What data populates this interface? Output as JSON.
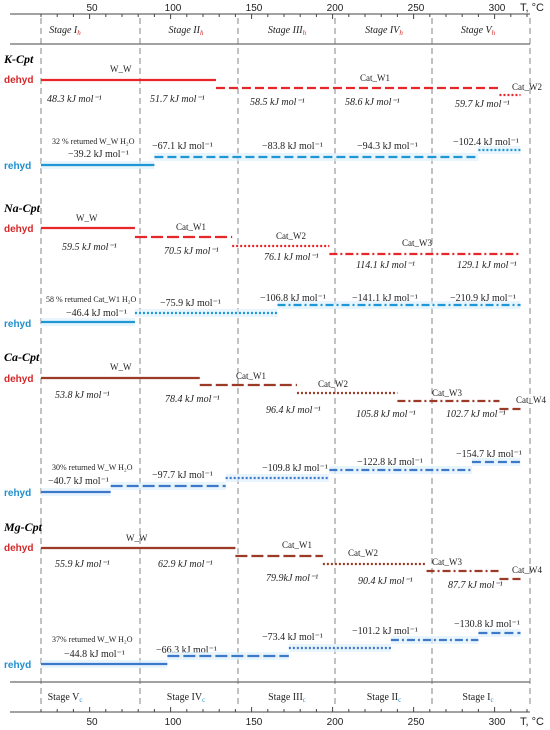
{
  "axis": {
    "unit": "T, °C",
    "top_ticks": [
      "50",
      "100",
      "150",
      "200",
      "250",
      "300"
    ],
    "bottom_ticks": [
      "50",
      "100",
      "150",
      "200",
      "250",
      "300"
    ],
    "top_stages": [
      "Stage I",
      "Stage II",
      "Stage III",
      "Stage IV",
      "Stage V"
    ],
    "top_stage_sub": "h",
    "bottom_stages": [
      "Stage V",
      "Stage IV",
      "Stage III",
      "Stage II",
      "Stage I"
    ],
    "bottom_stage_sub": "c"
  },
  "colors": {
    "dehyd_label": "#d62728",
    "rehyd_label": "#1f8fcf",
    "K-Cpt": {
      "dehyd": "#e8262a",
      "rehyd": "#1f97d4"
    },
    "Na-Cpt": {
      "dehyd": "#e8262a",
      "rehyd": "#1f97d4"
    },
    "Ca-Cpt": {
      "dehyd": "#9b3a26",
      "rehyd": "#3e78c8"
    },
    "Mg-Cpt": {
      "dehyd": "#9b3a26",
      "rehyd": "#3e78c8"
    }
  },
  "panels": [
    {
      "name": "K-Cpt",
      "dehyd_label": "dehyd",
      "rehyd_label": "rehyd",
      "dehyd_segments": [
        {
          "from": 22,
          "to": 130,
          "style": "solid",
          "label": "W_W"
        },
        {
          "from": 130,
          "to": 305,
          "style": "dash",
          "label": "Cat_W1"
        },
        {
          "from": 305,
          "to": 318,
          "style": "dot",
          "label": "Cat_W2"
        }
      ],
      "dehyd_energies": [
        "48.3 kJ mol⁻¹",
        "51.7 kJ mol⁻¹",
        "58.5 kJ mol⁻¹",
        "58.6 kJ mol⁻¹",
        "59.7 kJ mol⁻¹"
      ],
      "rehyd_segments": [
        {
          "from": 22,
          "to": 92,
          "style": "solid"
        },
        {
          "from": 92,
          "to": 292,
          "style": "dash"
        },
        {
          "from": 292,
          "to": 318,
          "style": "dot"
        }
      ],
      "rehyd_energies": [
        "−39.2 kJ mol⁻¹",
        "−67.1 kJ mol⁻¹",
        "−83.8 kJ mol⁻¹",
        "−94.3 kJ mol⁻¹",
        "−102.4 kJ mol⁻¹"
      ],
      "returned_note": "32 % returned W_W H₂O"
    },
    {
      "name": "Na-Cpt",
      "dehyd_label": "dehyd",
      "rehyd_label": "rehyd",
      "dehyd_segments": [
        {
          "from": 22,
          "to": 80,
          "style": "solid",
          "label": "W_W"
        },
        {
          "from": 80,
          "to": 140,
          "style": "longdash",
          "label": "Cat_W1"
        },
        {
          "from": 140,
          "to": 200,
          "style": "dot",
          "label": "Cat_W2"
        },
        {
          "from": 200,
          "to": 318,
          "style": "dashdot",
          "label": "Cat_W3"
        }
      ],
      "dehyd_energies": [
        "59.5 kJ mol⁻¹",
        "70.5 kJ mol⁻¹",
        "76.1 kJ mol⁻¹",
        "114.1 kJ mol⁻¹",
        "129.1 kJ mol⁻¹"
      ],
      "rehyd_segments": [
        {
          "from": 22,
          "to": 80,
          "style": "solid"
        },
        {
          "from": 80,
          "to": 168,
          "style": "dot"
        },
        {
          "from": 168,
          "to": 318,
          "style": "dashdot"
        }
      ],
      "rehyd_energies": [
        "−46.4 kJ mol⁻¹",
        "−75.9 kJ mol⁻¹",
        "−106.8 kJ mol⁻¹",
        "−141.1 kJ mol⁻¹",
        "−210.9 kJ mol⁻¹"
      ],
      "returned_note": "58 % returned Cat_W1 H₂O"
    },
    {
      "name": "Ca-Cpt",
      "dehyd_label": "dehyd",
      "rehyd_label": "rehyd",
      "dehyd_segments": [
        {
          "from": 22,
          "to": 120,
          "style": "solid",
          "label": "W_W"
        },
        {
          "from": 120,
          "to": 180,
          "style": "longdash",
          "label": "Cat_W1"
        },
        {
          "from": 180,
          "to": 242,
          "style": "dot",
          "label": "Cat_W2"
        },
        {
          "from": 242,
          "to": 305,
          "style": "dashdot",
          "label": "Cat_W3"
        },
        {
          "from": 305,
          "to": 318,
          "style": "dash",
          "label": "Cat_W4"
        }
      ],
      "dehyd_energies": [
        "53.8 kJ mol⁻¹",
        "78.4 kJ mol⁻¹",
        "96.4 kJ mol⁻¹",
        "105.8 kJ mol⁻¹",
        "102.7 kJ mol⁻¹"
      ],
      "rehyd_segments": [
        {
          "from": 22,
          "to": 65,
          "style": "solid"
        },
        {
          "from": 65,
          "to": 136,
          "style": "longdash"
        },
        {
          "from": 136,
          "to": 200,
          "style": "dot"
        },
        {
          "from": 200,
          "to": 288,
          "style": "dashdot"
        },
        {
          "from": 288,
          "to": 318,
          "style": "dash"
        }
      ],
      "rehyd_energies": [
        "−40.7 kJ mol⁻¹",
        "−97.7 kJ mol⁻¹",
        "−109.8 kJ mol⁻¹",
        "−122.8 kJ mol⁻¹",
        "−154.7 kJ mol⁻¹"
      ],
      "returned_note": "30% returned W_W H₂O"
    },
    {
      "name": "Mg-Cpt",
      "dehyd_label": "dehyd",
      "rehyd_label": "rehyd",
      "dehyd_segments": [
        {
          "from": 22,
          "to": 142,
          "style": "solid",
          "label": "W_W"
        },
        {
          "from": 142,
          "to": 196,
          "style": "longdash",
          "label": "Cat_W1"
        },
        {
          "from": 196,
          "to": 260,
          "style": "dot",
          "label": "Cat_W2"
        },
        {
          "from": 260,
          "to": 305,
          "style": "dashdot",
          "label": "Cat_W3"
        },
        {
          "from": 305,
          "to": 318,
          "style": "dash",
          "label": "Cat_W4"
        }
      ],
      "dehyd_energies": [
        "55.9 kJ mol⁻¹",
        "62.9 kJ mol⁻¹",
        "79.9kJ mol⁻¹",
        "90.4 kJ mol⁻¹",
        "87.7 kJ mol⁻¹"
      ],
      "rehyd_segments": [
        {
          "from": 22,
          "to": 100,
          "style": "solid"
        },
        {
          "from": 100,
          "to": 175,
          "style": "longdash"
        },
        {
          "from": 175,
          "to": 238,
          "style": "dot"
        },
        {
          "from": 238,
          "to": 292,
          "style": "dashdot"
        },
        {
          "from": 292,
          "to": 318,
          "style": "dash"
        }
      ],
      "rehyd_energies": [
        "−44.8 kJ mol⁻¹",
        "−66.3 kJ mol⁻¹",
        "−73.4 kJ mol⁻¹",
        "−101.2 kJ mol⁻¹",
        "−130.8 kJ mol⁻¹"
      ],
      "returned_note": "37% returned W_W H₂O"
    }
  ]
}
